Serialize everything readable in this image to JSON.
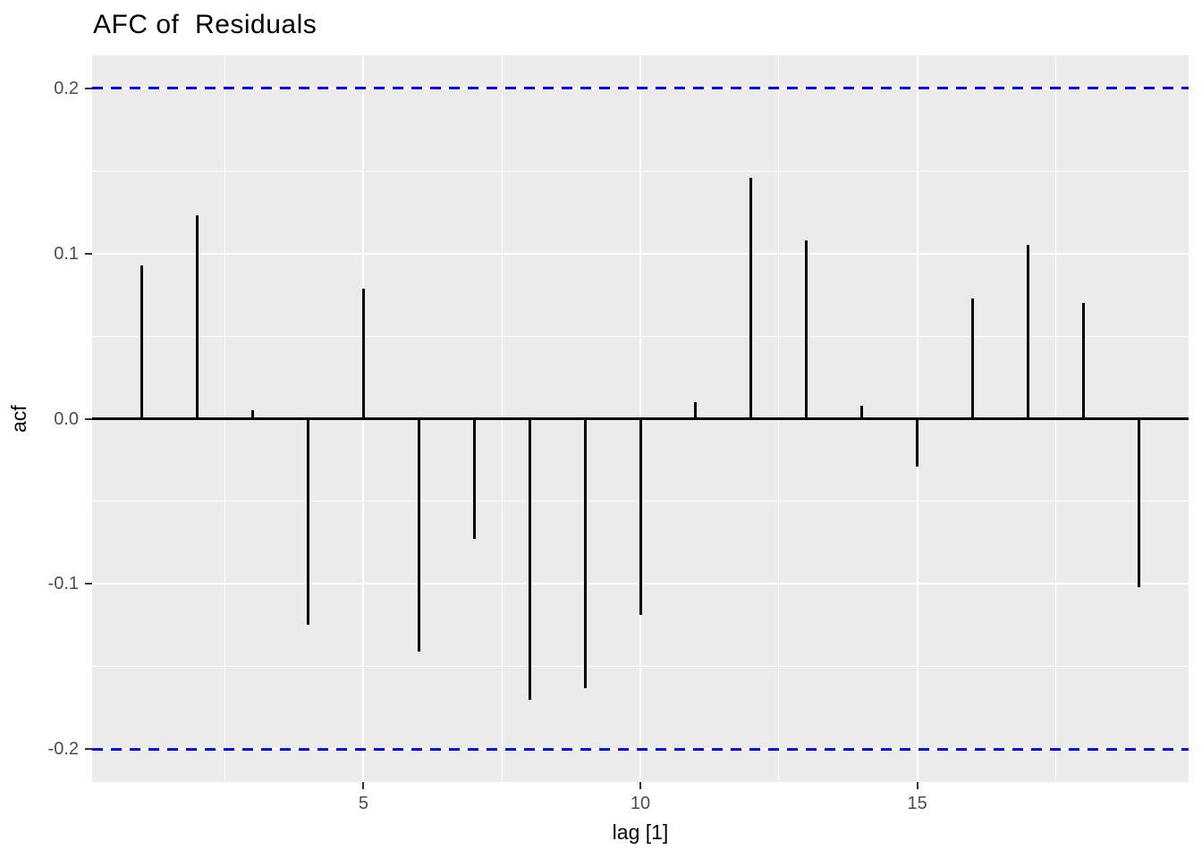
{
  "chart_data": {
    "type": "bar",
    "subtype": "acf-lollipop",
    "title": "AFC of  Residuals",
    "xlabel": "lag [1]",
    "ylabel": "acf",
    "x": [
      1,
      2,
      3,
      4,
      5,
      6,
      7,
      8,
      9,
      10,
      11,
      12,
      13,
      14,
      15,
      16,
      17,
      18,
      19
    ],
    "values": [
      0.093,
      0.123,
      0.005,
      -0.125,
      0.079,
      -0.141,
      -0.073,
      -0.17,
      -0.163,
      -0.119,
      0.01,
      0.146,
      0.108,
      0.008,
      -0.029,
      0.073,
      0.105,
      0.07,
      -0.102
    ],
    "confidence_bounds": [
      -0.2,
      0.2
    ],
    "xlim": [
      0.1,
      19.9
    ],
    "ylim": [
      -0.22,
      0.22
    ],
    "x_major_ticks": [
      5,
      10,
      15
    ],
    "x_tick_labels": [
      "5",
      "10",
      "15"
    ],
    "x_minor_gridlines": [
      2.5,
      7.5,
      12.5,
      17.5
    ],
    "y_major_ticks": [
      0.2,
      0.1,
      0.0,
      -0.1,
      -0.2
    ],
    "y_tick_labels": [
      "0.2",
      "0.1",
      "0.0",
      "-0.1",
      "-0.2"
    ],
    "y_minor_gridlines": [
      0.15,
      0.05,
      -0.05,
      -0.15
    ],
    "grid": true,
    "legend": "none",
    "colors": {
      "panel_background": "#EBEBEB",
      "gridline": "#FFFFFF",
      "bar": "#000000",
      "zero_line": "#000000",
      "confidence_line": "#0808F0",
      "axis_text": "#4D4D4D",
      "tick_mark": "#333333",
      "title_text": "#000000"
    }
  }
}
